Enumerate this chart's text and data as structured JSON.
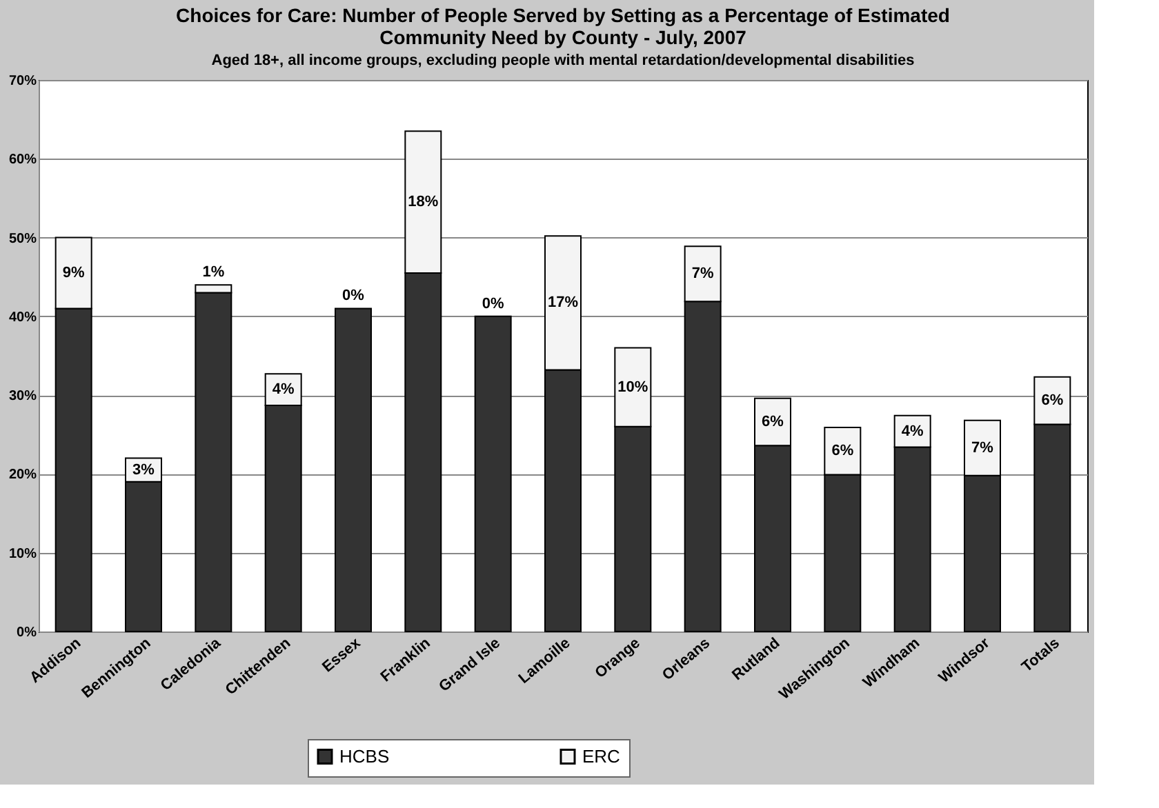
{
  "chart_data": {
    "type": "bar",
    "title": [
      "Choices for Care:  Number of People Served by Setting as a Percentage of Estimated",
      "Community Need by County - July, 2007"
    ],
    "subtitle": "Aged 18+, all income groups, excluding people with mental retardation/developmental disabilities",
    "categories": [
      "Addison",
      "Bennington",
      "Caledonia",
      "Chittenden",
      "Essex",
      "Franklin",
      "Grand Isle",
      "Lamoille",
      "Orange",
      "Orleans",
      "Rutland",
      "Washington",
      "Windham",
      "Windsor",
      "Totals"
    ],
    "stacked": true,
    "series": [
      {
        "name": "HCBS",
        "color": "#333333",
        "values": [
          41,
          19,
          43,
          28.7,
          41,
          45.5,
          40,
          33.2,
          26,
          41.9,
          23.6,
          19.9,
          23.4,
          19.8,
          26.3
        ]
      },
      {
        "name": "ERC",
        "color": "#f4f4f4",
        "values": [
          9,
          3,
          1,
          4,
          0,
          18,
          0,
          17,
          10,
          7,
          6,
          6,
          4,
          7,
          6
        ],
        "value_labels": [
          "9%",
          "3%",
          "1%",
          "4%",
          "0%",
          "18%",
          "0%",
          "17%",
          "10%",
          "7%",
          "6%",
          "6%",
          "4%",
          "7%",
          "6%"
        ]
      }
    ],
    "ylim": [
      0,
      70
    ],
    "yticks": [
      {
        "value": 0,
        "label": "0%"
      },
      {
        "value": 10,
        "label": "10%"
      },
      {
        "value": 20,
        "label": "20%"
      },
      {
        "value": 30,
        "label": "30%"
      },
      {
        "value": 40,
        "label": "40%"
      },
      {
        "value": 50,
        "label": "50%"
      },
      {
        "value": 60,
        "label": "60%"
      },
      {
        "value": 70,
        "label": "70%"
      }
    ],
    "grid": "y",
    "legend": "bottom"
  }
}
